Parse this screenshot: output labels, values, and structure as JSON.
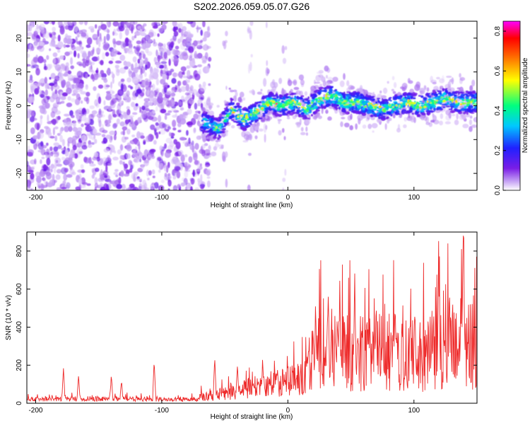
{
  "title": "S202.2026.059.05.07.G26",
  "colors": {
    "snr_line": "#ee2a2a",
    "colormap": [
      "#ffffff",
      "#c9a8f5",
      "#7a1ee6",
      "#2020ff",
      "#00c8ff",
      "#00ff80",
      "#ffff00",
      "#ff6000",
      "#ff0000",
      "#ff00ff"
    ]
  },
  "chart_data": [
    {
      "type": "heatmap",
      "name": "spectrogram",
      "xlabel": "Height of straight line (km)",
      "ylabel": "Frequency (Hz)",
      "xlim": [
        -207,
        150
      ],
      "ylim": [
        -25,
        25
      ],
      "xticks": [
        -200,
        -100,
        0,
        100
      ],
      "yticks": [
        -20,
        -10,
        0,
        10,
        20
      ],
      "colorbar": {
        "label": "Normalized spectral amplitude",
        "range": [
          0,
          0.85
        ],
        "ticks": [
          0.0,
          0.2,
          0.4,
          0.6,
          0.8
        ]
      },
      "ridge_center_hz": {
        "x": [
          -65,
          -55,
          -45,
          -35,
          -25,
          -15,
          -5,
          5,
          15,
          25,
          35,
          45,
          55,
          65,
          75,
          85,
          95,
          105,
          115,
          125,
          135,
          145
        ],
        "y": [
          -5,
          -7,
          -1,
          -4,
          -2,
          1,
          0,
          1,
          -1,
          2,
          3,
          1,
          1,
          0,
          -1,
          0,
          1,
          0,
          1,
          2,
          1,
          1
        ]
      }
    },
    {
      "type": "line",
      "name": "snr",
      "xlabel": "Height of straight line (km)",
      "ylabel": "SNR (10 * v/v)",
      "xlim": [
        -207,
        150
      ],
      "ylim": [
        0,
        900
      ],
      "xticks": [
        -200,
        -100,
        0,
        100
      ],
      "yticks": [
        0,
        200,
        400,
        600,
        800
      ],
      "baseline": {
        "x": [
          -207,
          -180,
          -150,
          -120,
          -90,
          -70,
          -50,
          -30,
          -10,
          10,
          20,
          40,
          60,
          80,
          100,
          120,
          140,
          150
        ],
        "y": [
          25,
          28,
          30,
          28,
          25,
          28,
          45,
          70,
          90,
          110,
          150,
          170,
          160,
          170,
          160,
          180,
          200,
          180
        ]
      },
      "peaks": {
        "x": [
          -178,
          -166,
          -140,
          -132,
          -106,
          -58,
          -40,
          -20,
          22,
          32,
          53,
          70,
          85,
          120,
          128,
          139
        ],
        "y": [
          200,
          160,
          165,
          130,
          240,
          255,
          230,
          260,
          560,
          640,
          720,
          600,
          590,
          620,
          580,
          910
        ]
      }
    }
  ]
}
